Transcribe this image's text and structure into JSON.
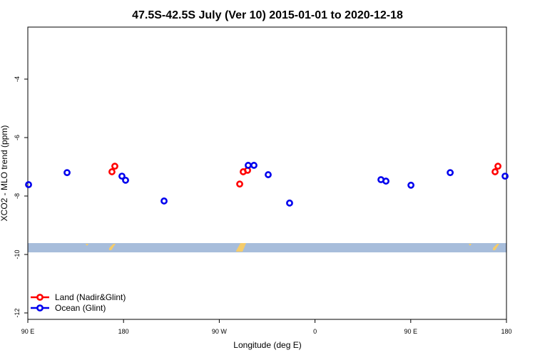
{
  "chart_data": {
    "type": "scatter",
    "title": "47.5S-42.5S July (Ver 10)   2015-01-01 to 2020-12-18",
    "x_label": "Longitude (deg E)",
    "y_label": "XCO2 - MLO trend (ppm)",
    "xlim": [
      90,
      540
    ],
    "ylim": [
      -12.22,
      -2.22
    ],
    "xticks": [
      {
        "value": 90,
        "label": "90 E"
      },
      {
        "value": 180,
        "label": "180"
      },
      {
        "value": 270,
        "label": "90 W"
      },
      {
        "value": 360,
        "label": "0"
      },
      {
        "value": 450,
        "label": "90 E"
      },
      {
        "value": 540,
        "label": "180"
      }
    ],
    "yticks": [
      -4,
      -6,
      -8,
      -10,
      -12
    ],
    "legend": "bottom-left",
    "series": [
      {
        "name": "Land (Nadir&Glint)",
        "color": "#ff0000",
        "x": [
          169.1,
          171.8,
          289.2,
          292.5,
          296.6,
          529.3,
          532.0
        ],
        "values": [
          -7.17,
          -6.98,
          -7.59,
          -7.17,
          -7.12,
          -7.17,
          -6.98
        ]
      },
      {
        "name": "Ocean (Glint)",
        "color": "#0000ee",
        "x": [
          90.7,
          126.9,
          178.5,
          181.9,
          218.1,
          297.2,
          302.6,
          316.0,
          336.1,
          422.0,
          426.7,
          450.2,
          487.1,
          538.7
        ],
        "values": [
          -7.61,
          -7.2,
          -7.32,
          -7.46,
          -8.17,
          -6.95,
          -6.95,
          -7.27,
          -8.24,
          -7.44,
          -7.49,
          -7.63,
          -7.2,
          -7.32
        ]
      }
    ]
  }
}
